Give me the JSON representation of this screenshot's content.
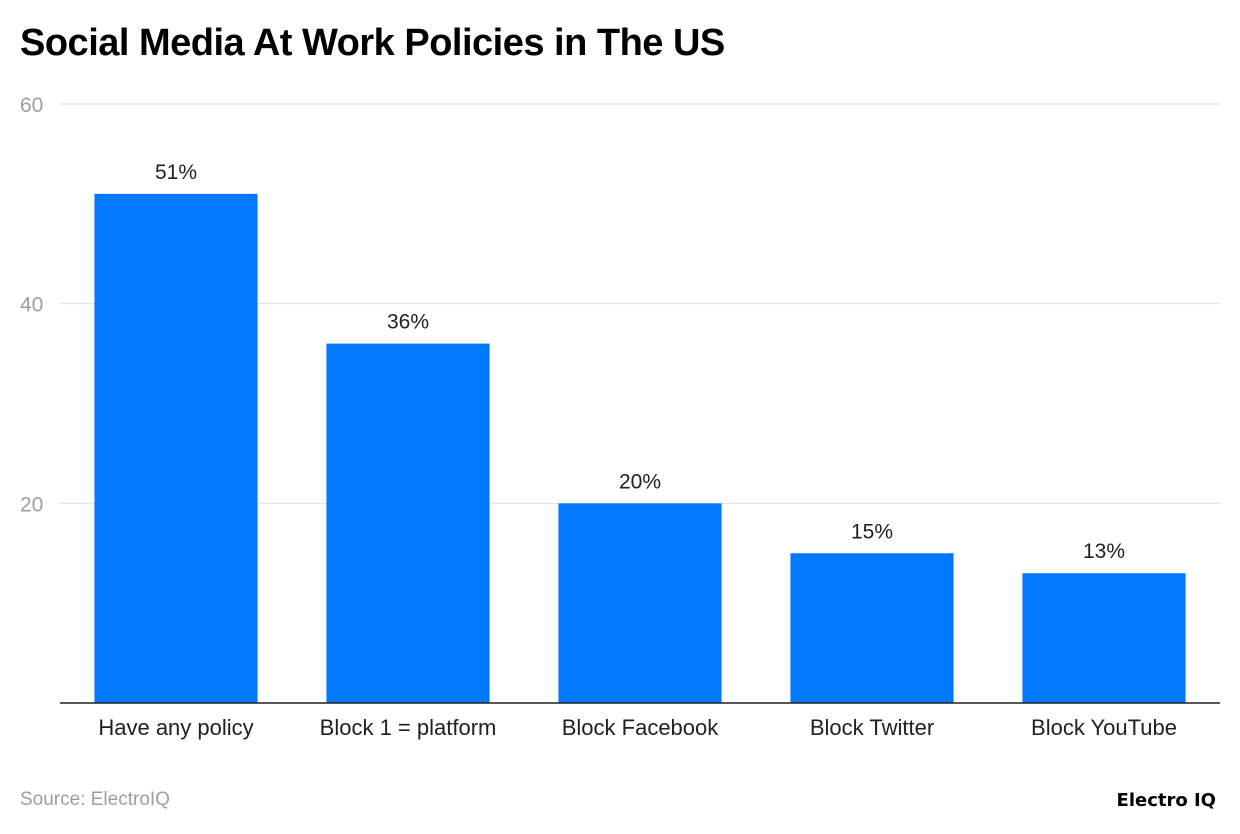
{
  "title": "Social Media At Work Policies in The US",
  "source": "Source: ElectroIQ",
  "logo": "Electro IQ",
  "chart_data": {
    "type": "bar",
    "title": "Social Media At Work Policies in The US",
    "categories": [
      "Have any policy",
      "Block 1 = platform",
      "Block Facebook",
      "Block Twitter",
      "Block YouTube"
    ],
    "values": [
      51,
      36,
      20,
      15,
      13
    ],
    "data_labels": [
      "51%",
      "36%",
      "20%",
      "15%",
      "13%"
    ],
    "ylim": [
      0,
      60
    ],
    "yticks": [
      20,
      40,
      60
    ],
    "xlabel": "",
    "ylabel": "",
    "grid": true,
    "bar_color": "#0179fe"
  }
}
